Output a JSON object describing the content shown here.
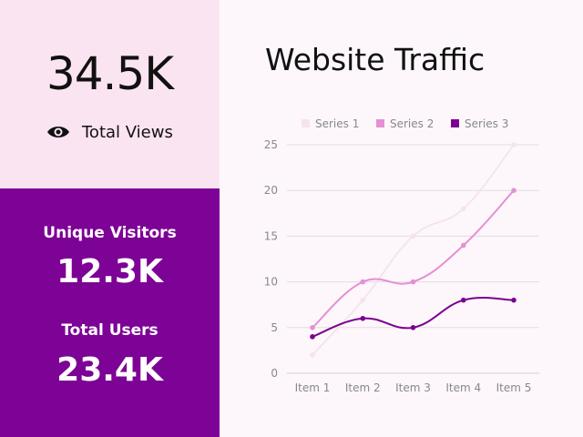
{
  "stats": {
    "total_views_value": "34.5K",
    "total_views_label": "Total Views",
    "unique_visitors_label": "Unique Visitors",
    "unique_visitors_value": "12.3K",
    "total_users_label": "Total Users",
    "total_users_value": "23.4K"
  },
  "icons": {
    "views": "eye-icon"
  },
  "colors": {
    "panel_top": "#fbe4f1",
    "panel_bottom": "#7d0296",
    "background": "#fdf7fb"
  },
  "chart_data": {
    "type": "line",
    "title": "Website Traffic",
    "categories": [
      "Item 1",
      "Item 2",
      "Item 3",
      "Item 4",
      "Item 5"
    ],
    "ylim": [
      0,
      25
    ],
    "yticks": [
      0,
      5,
      10,
      15,
      20,
      25
    ],
    "grid": true,
    "legend_position": "top",
    "series": [
      {
        "name": "Series 1",
        "color": "#f6e3ee",
        "values": [
          2,
          8,
          15,
          18,
          25
        ]
      },
      {
        "name": "Series 2",
        "color": "#e58fd4",
        "values": [
          5,
          10,
          10,
          14,
          20
        ]
      },
      {
        "name": "Series 3",
        "color": "#7a028f",
        "values": [
          4,
          6,
          5,
          8,
          8
        ]
      }
    ]
  }
}
